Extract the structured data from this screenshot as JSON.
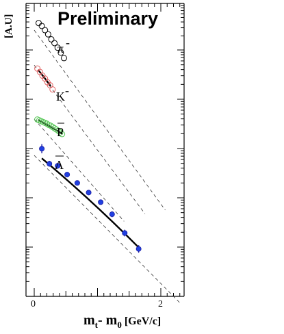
{
  "chart_data": {
    "type": "scatter",
    "title": "Preliminary",
    "xlabel": {
      "main": "m",
      "sub_t": "t",
      "dash": "- m",
      "sub_0": "0",
      "unit": " [GeV/c]"
    },
    "ylabel": "[A.U]",
    "x_ticks": [
      "0",
      "2"
    ],
    "xlim": [
      -0.05,
      2.35
    ],
    "y_scale": "log",
    "grid": false,
    "series": [
      {
        "name": "π",
        "name_sup": "-",
        "marker": "open-circle",
        "color": "#000000",
        "x": [
          0.07,
          0.12,
          0.17,
          0.22,
          0.27,
          0.32,
          0.37,
          0.42,
          0.47
        ],
        "y": [
          -4.7,
          -5.4,
          -6.4,
          -7.4,
          -8.6,
          -9.5,
          -10.6,
          -11.8,
          -13.1
        ],
        "fit_dashed": {
          "x": [
            0.0,
            2.07
          ],
          "y": [
            -6.4,
            -49.5
          ]
        }
      },
      {
        "name": "K",
        "name_sup": "-",
        "marker": "open-circle",
        "color": "#e06060",
        "x": [
          0.05,
          0.09,
          0.13,
          0.17,
          0.21,
          0.25,
          0.29
        ],
        "y": [
          -15.6,
          -16.4,
          -17.3,
          -18.0,
          -18.9,
          -19.6,
          -20.6
        ],
        "fit_solid": {
          "x": [
            0.06,
            0.26
          ],
          "y": [
            -15.9,
            -19.8
          ]
        },
        "fit_dashed": {
          "x": [
            0.0,
            1.75
          ],
          "y": [
            -14.8,
            -50.4
          ]
        }
      },
      {
        "name": "P",
        "overbar": true,
        "marker": "open-circle",
        "color": "#5ac85a",
        "x": [
          0.05,
          0.08,
          0.11,
          0.14,
          0.17,
          0.2,
          0.23,
          0.26,
          0.29,
          0.32,
          0.35,
          0.38,
          0.41,
          0.44
        ],
        "y": [
          -27.8,
          -28.0,
          -28.2,
          -28.4,
          -28.6,
          -28.8,
          -29.1,
          -29.3,
          -29.6,
          -29.9,
          -30.2,
          -30.5,
          -30.9,
          -31.3
        ],
        "fit_solid": {
          "x": [
            0.06,
            0.45
          ],
          "y": [
            -27.9,
            -31.3
          ]
        },
        "fit_dashed": {
          "x": [
            0.0,
            1.42
          ],
          "y": [
            -27.7,
            -52.2
          ]
        }
      },
      {
        "name": "Λ",
        "overbar": true,
        "marker": "filled-circle",
        "color": "#2040e0",
        "x": [
          0.12,
          0.24,
          0.37,
          0.52,
          0.68,
          0.86,
          1.05,
          1.23,
          1.43,
          1.65
        ],
        "y": [
          -34.8,
          -38.4,
          -38.9,
          -41.0,
          -43.0,
          -45.3,
          -47.6,
          -50.5,
          -55.0,
          -58.8
        ],
        "y_err": [
          1.1,
          0.7,
          0.6,
          0.6,
          0.6,
          0.6,
          0.6,
          0.7,
          0.8,
          0.9
        ],
        "fit_solid": {
          "x": [
            0.12,
            1.66
          ],
          "y": [
            -37.1,
            -58.6
          ]
        },
        "fit_dashed": {
          "x": [
            0.0,
            2.32
          ],
          "y": [
            -36.4,
            -72.0
          ]
        }
      }
    ]
  }
}
